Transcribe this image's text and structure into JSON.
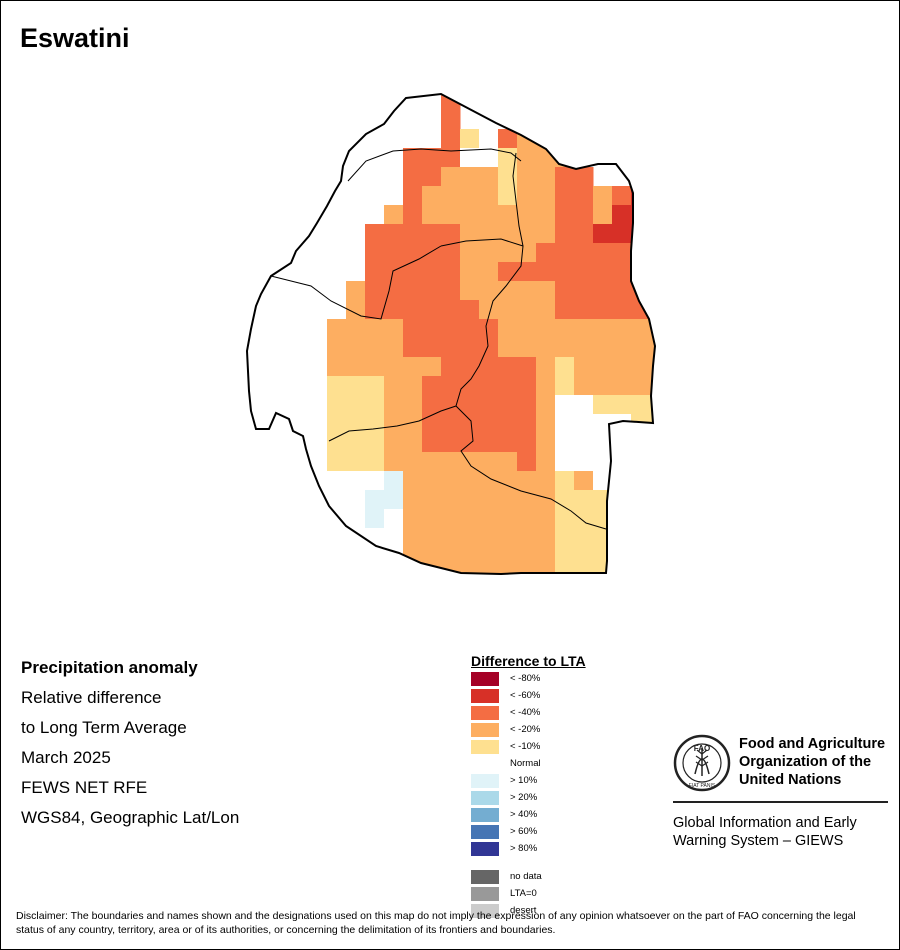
{
  "map": {
    "title": "Eswatini",
    "colors": {
      "lt_-80": "#a50026",
      "lt_-60": "#d73027",
      "lt_-40": "#f46d43",
      "lt_-20": "#fdae61",
      "lt_-10": "#fee090",
      "normal": "#ffffff",
      "gt_10": "#e0f3f8",
      "gt_20": "#abd9e9",
      "gt_40": "#74add1",
      "gt_60": "#4575b4",
      "gt_80": "#313695",
      "no_data": "#666666",
      "lta_zero": "#999999",
      "desert": "#cccccc",
      "border": "#000000"
    }
  },
  "info": {
    "heading": "Precipitation anomaly",
    "line1": "Relative difference",
    "line2": "to Long Term Average",
    "line3": "March 2025",
    "line4": "FEWS NET RFE",
    "line5": "WGS84, Geographic Lat/Lon"
  },
  "legend": {
    "title": "Difference to LTA",
    "items": [
      {
        "label": "< -80%",
        "color": "#a50026"
      },
      {
        "label": "< -60%",
        "color": "#d73027"
      },
      {
        "label": "< -40%",
        "color": "#f46d43"
      },
      {
        "label": "< -20%",
        "color": "#fdae61"
      },
      {
        "label": "< -10%",
        "color": "#fee090"
      },
      {
        "label": "Normal",
        "color": "#ffffff"
      },
      {
        "label": "> 10%",
        "color": "#e0f3f8"
      },
      {
        "label": "> 20%",
        "color": "#abd9e9"
      },
      {
        "label": "> 40%",
        "color": "#74add1"
      },
      {
        "label": "> 60%",
        "color": "#4575b4"
      },
      {
        "label": "> 80%",
        "color": "#313695"
      },
      {
        "label": "no data",
        "color": "#666666"
      },
      {
        "label": "LTA=0",
        "color": "#999999"
      },
      {
        "label": "desert",
        "color": "#cccccc"
      }
    ]
  },
  "branding": {
    "fao_name": "Food and Agriculture Organization of the United Nations",
    "emblem_letters": "FAO",
    "emblem_motto": "FIAT PANIS",
    "giews_name": "Global Information and Early Warning System – GIEWS"
  },
  "disclaimer": "Disclaimer: The boundaries and names shown and the designations used on this map do not imply the expression of any opinion whatsoever on the part of FAO concerning the legal status of any country, territory, area or of its authorities, or concerning the delimitation of its frontiers and boundaries."
}
